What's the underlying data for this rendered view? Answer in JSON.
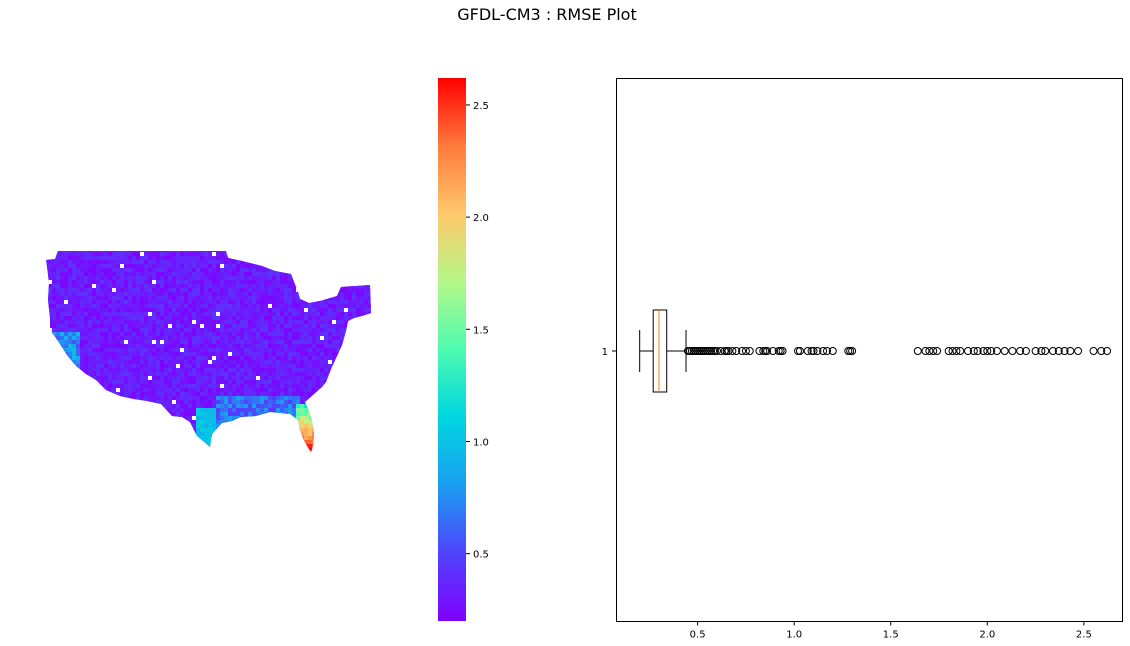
{
  "figure": {
    "title": "GFDL-CM3 : RMSE Plot"
  },
  "colormap": {
    "name": "rainbow",
    "stops": [
      "#8000ff",
      "#4f44fc",
      "#1a9ef0",
      "#00d6e0",
      "#4dfbb0",
      "#b4f887",
      "#ffc86a",
      "#ff7a3c",
      "#ff0000"
    ]
  },
  "chart_data": [
    {
      "type": "heatmap",
      "title": "",
      "description_value_field": "rmse",
      "colorbar": {
        "range": [
          0.2,
          2.62
        ],
        "ticks": [
          0.5,
          1.0,
          1.5,
          2.0,
          2.5
        ],
        "tick_labels": [
          "0.5",
          "1.0",
          "1.5",
          "2.0",
          "2.5"
        ]
      },
      "region_values": {
        "interior_typical": 0.32,
        "gulf_coast": 0.75,
        "south_texas_tip": 1.0,
        "florida_peninsula_north": 1.2,
        "florida_peninsula_south": 2.55
      }
    },
    {
      "type": "box",
      "orientation": "horizontal",
      "y_tick_labels": [
        "1"
      ],
      "xlim": [
        0.08,
        2.7
      ],
      "x_ticks": [
        0.5,
        1.0,
        1.5,
        2.0,
        2.5
      ],
      "x_tick_labels": [
        "0.5",
        "1.0",
        "1.5",
        "2.0",
        "2.5"
      ],
      "stats": {
        "whislo": 0.2,
        "q1": 0.27,
        "median": 0.3,
        "q3": 0.34,
        "whishi": 0.44
      },
      "median_color": "#ff7f0e",
      "fliers": [
        0.45,
        0.46,
        0.47,
        0.48,
        0.49,
        0.5,
        0.51,
        0.52,
        0.53,
        0.54,
        0.55,
        0.56,
        0.57,
        0.58,
        0.59,
        0.6,
        0.62,
        0.64,
        0.65,
        0.66,
        0.68,
        0.7,
        0.73,
        0.75,
        0.77,
        0.82,
        0.84,
        0.85,
        0.86,
        0.89,
        0.92,
        0.93,
        0.94,
        1.02,
        1.03,
        1.07,
        1.09,
        1.1,
        1.12,
        1.15,
        1.17,
        1.2,
        1.28,
        1.29,
        1.3,
        1.64,
        1.68,
        1.7,
        1.72,
        1.74,
        1.8,
        1.82,
        1.84,
        1.86,
        1.9,
        1.93,
        1.95,
        1.98,
        2.0,
        2.02,
        2.05,
        2.09,
        2.13,
        2.17,
        2.2,
        2.25,
        2.28,
        2.3,
        2.34,
        2.37,
        2.4,
        2.43,
        2.47,
        2.55,
        2.59,
        2.62
      ]
    }
  ]
}
